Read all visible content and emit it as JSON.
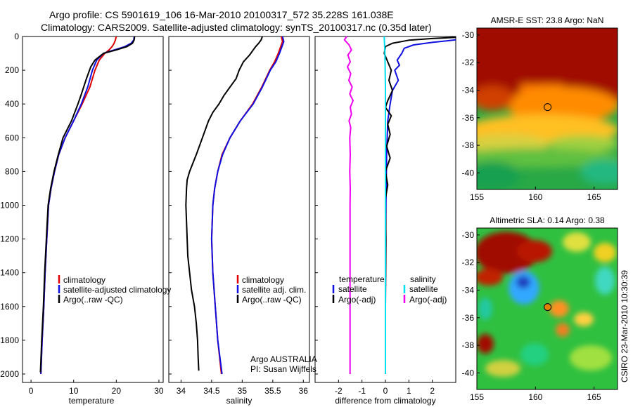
{
  "header": {
    "line1": "Argo profile: CS 5901619_106 16-Mar-2010 20100317_572 35.228S 161.038E",
    "line2": "Climatology: CARS2009. Satellite-adjusted climatology: synTS_20100317.nc (0.35d later)"
  },
  "colors": {
    "climatology": "#e00000",
    "satellite": "#1010e0",
    "argo": "#000000",
    "satellite_salinity": "#00e0f0",
    "argo_salinity_diff": "#f000f0"
  },
  "chart_data": [
    {
      "type": "line",
      "id": "temperature",
      "xlabel": "temperature",
      "ylabel": "",
      "xlim": [
        -2,
        31
      ],
      "ylim": [
        2050,
        0
      ],
      "x_ticks": [
        0,
        10,
        20,
        30
      ],
      "y_ticks": [
        0,
        200,
        400,
        600,
        800,
        1000,
        1200,
        1400,
        1600,
        1800,
        2000
      ],
      "series": [
        {
          "name": "climatology",
          "color": "#e00000",
          "points": [
            [
              20.0,
              0
            ],
            [
              19.8,
              20
            ],
            [
              19.5,
              40
            ],
            [
              19.0,
              60
            ],
            [
              18.3,
              80
            ],
            [
              17.3,
              100
            ],
            [
              16.0,
              140
            ],
            [
              15.0,
              200
            ],
            [
              13.8,
              300
            ],
            [
              12.0,
              400
            ],
            [
              10.0,
              500
            ],
            [
              8.0,
              600
            ],
            [
              6.5,
              700
            ],
            [
              5.5,
              800
            ],
            [
              4.7,
              900
            ],
            [
              4.1,
              1000
            ],
            [
              3.7,
              1200
            ],
            [
              3.3,
              1400
            ],
            [
              3.0,
              1600
            ],
            [
              2.6,
              1800
            ],
            [
              2.3,
              2000
            ]
          ]
        },
        {
          "name": "satellite-adjusted climatology",
          "color": "#1010e0",
          "points": [
            [
              24.2,
              0
            ],
            [
              24.1,
              20
            ],
            [
              23.5,
              40
            ],
            [
              22.0,
              60
            ],
            [
              19.5,
              80
            ],
            [
              17.0,
              100
            ],
            [
              15.4,
              140
            ],
            [
              14.4,
              200
            ],
            [
              13.3,
              300
            ],
            [
              11.8,
              400
            ],
            [
              10.0,
              500
            ],
            [
              8.0,
              600
            ],
            [
              6.5,
              700
            ],
            [
              5.5,
              800
            ],
            [
              4.7,
              900
            ],
            [
              4.1,
              1000
            ],
            [
              3.7,
              1200
            ],
            [
              3.3,
              1400
            ],
            [
              3.0,
              1600
            ],
            [
              2.6,
              1800
            ],
            [
              2.3,
              2000
            ]
          ]
        },
        {
          "name": "Argo(..raw -QC)",
          "color": "#000000",
          "points": [
            [
              24.3,
              0
            ],
            [
              24.2,
              20
            ],
            [
              23.8,
              40
            ],
            [
              22.5,
              60
            ],
            [
              20.0,
              80
            ],
            [
              17.0,
              100
            ],
            [
              15.0,
              140
            ],
            [
              14.0,
              180
            ],
            [
              13.0,
              250
            ],
            [
              11.7,
              350
            ],
            [
              11.0,
              400
            ],
            [
              9.5,
              500
            ],
            [
              7.5,
              600
            ],
            [
              6.4,
              700
            ],
            [
              5.4,
              800
            ],
            [
              4.6,
              900
            ],
            [
              4.0,
              1000
            ],
            [
              3.6,
              1200
            ],
            [
              3.2,
              1400
            ],
            [
              2.9,
              1600
            ],
            [
              2.5,
              1800
            ],
            [
              2.2,
              1990
            ]
          ]
        }
      ],
      "legend": [
        "climatology",
        "satellite-adjusted climatology",
        "Argo(..raw -QC)"
      ]
    },
    {
      "type": "line",
      "id": "salinity",
      "xlabel": "salinity",
      "ylabel": "",
      "xlim": [
        33.8,
        36.1
      ],
      "ylim": [
        2050,
        0
      ],
      "x_ticks": [
        34,
        34.5,
        35,
        35.5,
        36
      ],
      "series": [
        {
          "name": "climatology",
          "color": "#e00000",
          "points": [
            [
              35.64,
              0
            ],
            [
              35.66,
              30
            ],
            [
              35.63,
              60
            ],
            [
              35.59,
              100
            ],
            [
              35.53,
              150
            ],
            [
              35.45,
              200
            ],
            [
              35.32,
              300
            ],
            [
              35.17,
              400
            ],
            [
              34.97,
              500
            ],
            [
              34.8,
              600
            ],
            [
              34.67,
              700
            ],
            [
              34.6,
              800
            ],
            [
              34.55,
              900
            ],
            [
              34.52,
              1000
            ],
            [
              34.5,
              1200
            ],
            [
              34.52,
              1400
            ],
            [
              34.56,
              1600
            ],
            [
              34.6,
              1800
            ],
            [
              34.66,
              2000
            ]
          ]
        },
        {
          "name": "satellite adj. clim.",
          "color": "#1010e0",
          "points": [
            [
              35.66,
              0
            ],
            [
              35.68,
              30
            ],
            [
              35.65,
              60
            ],
            [
              35.61,
              100
            ],
            [
              35.55,
              150
            ],
            [
              35.46,
              200
            ],
            [
              35.33,
              300
            ],
            [
              35.18,
              400
            ],
            [
              34.97,
              500
            ],
            [
              34.8,
              600
            ],
            [
              34.68,
              700
            ],
            [
              34.6,
              800
            ],
            [
              34.55,
              900
            ],
            [
              34.52,
              1000
            ],
            [
              34.5,
              1200
            ],
            [
              34.52,
              1400
            ],
            [
              34.56,
              1600
            ],
            [
              34.6,
              1800
            ],
            [
              34.67,
              2000
            ]
          ]
        },
        {
          "name": "Argo(..raw -QC)",
          "color": "#000000",
          "points": [
            [
              35.33,
              0
            ],
            [
              35.31,
              20
            ],
            [
              35.27,
              40
            ],
            [
              35.22,
              60
            ],
            [
              35.18,
              80
            ],
            [
              35.12,
              110
            ],
            [
              35.02,
              150
            ],
            [
              34.95,
              200
            ],
            [
              34.9,
              250
            ],
            [
              34.8,
              300
            ],
            [
              34.7,
              350
            ],
            [
              34.62,
              400
            ],
            [
              34.52,
              450
            ],
            [
              34.45,
              500
            ],
            [
              34.35,
              600
            ],
            [
              34.25,
              700
            ],
            [
              34.14,
              800
            ],
            [
              34.1,
              850
            ],
            [
              34.09,
              900
            ],
            [
              34.08,
              1000
            ],
            [
              34.09,
              1100
            ],
            [
              34.1,
              1200
            ],
            [
              34.11,
              1300
            ],
            [
              34.14,
              1400
            ],
            [
              34.17,
              1500
            ],
            [
              34.22,
              1600
            ],
            [
              34.25,
              1700
            ],
            [
              34.27,
              1800
            ],
            [
              34.28,
              1900
            ],
            [
              34.29,
              1980
            ]
          ]
        }
      ],
      "legend": [
        "climatology",
        "satellite adj. clim.",
        "Argo(..raw -QC)"
      ],
      "annotation": [
        "Argo AUSTRALIA",
        "PI: Susan Wijffels"
      ]
    },
    {
      "type": "line",
      "id": "difference",
      "xlabel": "difference from climatology",
      "ylabel": "",
      "xlim": [
        -3,
        3
      ],
      "ylim": [
        2050,
        0
      ],
      "x_ticks": [
        -2,
        -1,
        0,
        1,
        2
      ],
      "series": [
        {
          "name": "temperature satellite",
          "color": "#1010e0",
          "points": [
            [
              3.0,
              20
            ],
            [
              2.0,
              35
            ],
            [
              1.2,
              50
            ],
            [
              0.8,
              70
            ],
            [
              0.7,
              100
            ],
            [
              0.5,
              140
            ],
            [
              0.6,
              170
            ],
            [
              0.4,
              200
            ],
            [
              0.55,
              260
            ],
            [
              0.3,
              320
            ],
            [
              0.2,
              400
            ],
            [
              0.1,
              500
            ],
            [
              0.05,
              700
            ],
            [
              0.02,
              1000
            ],
            [
              0.0,
              1500
            ],
            [
              0.0,
              2000
            ]
          ]
        },
        {
          "name": "temperature Argo(-adj)",
          "color": "#000000",
          "points": [
            [
              3.0,
              5
            ],
            [
              2.0,
              12
            ],
            [
              1.0,
              22
            ],
            [
              0.3,
              40
            ],
            [
              0.0,
              60
            ],
            [
              -0.05,
              100
            ],
            [
              0.1,
              150
            ],
            [
              0.25,
              200
            ],
            [
              0.15,
              260
            ],
            [
              0.3,
              320
            ],
            [
              0.1,
              380
            ],
            [
              0.0,
              420
            ],
            [
              0.25,
              470
            ],
            [
              0.1,
              520
            ],
            [
              0.2,
              580
            ],
            [
              0.05,
              650
            ],
            [
              0.2,
              720
            ],
            [
              0.0,
              800
            ],
            [
              0.1,
              880
            ],
            [
              0.0,
              960
            ],
            [
              0.02,
              1200
            ],
            [
              0.0,
              1600
            ],
            [
              0.0,
              2000
            ]
          ]
        },
        {
          "name": "salinity satellite",
          "color": "#00e0f0",
          "points": [
            [
              -0.05,
              0
            ],
            [
              -0.02,
              100
            ],
            [
              0.0,
              300
            ],
            [
              0.0,
              600
            ],
            [
              0.0,
              1000
            ],
            [
              0.0,
              1500
            ],
            [
              0.0,
              2000
            ]
          ]
        },
        {
          "name": "salinity Argo(-adj)",
          "color": "#f000f0",
          "points": [
            [
              -1.65,
              0
            ],
            [
              -1.75,
              20
            ],
            [
              -1.55,
              50
            ],
            [
              -1.45,
              80
            ],
            [
              -1.6,
              110
            ],
            [
              -1.5,
              150
            ],
            [
              -1.62,
              180
            ],
            [
              -1.48,
              220
            ],
            [
              -1.56,
              260
            ],
            [
              -1.42,
              300
            ],
            [
              -1.52,
              340
            ],
            [
              -1.38,
              380
            ],
            [
              -1.5,
              420
            ],
            [
              -1.45,
              460
            ],
            [
              -1.55,
              500
            ],
            [
              -1.48,
              540
            ],
            [
              -1.52,
              600
            ],
            [
              -1.5,
              700
            ],
            [
              -1.52,
              800
            ],
            [
              -1.5,
              900
            ],
            [
              -1.51,
              1000
            ],
            [
              -1.51,
              1200
            ],
            [
              -1.51,
              1400
            ],
            [
              -1.51,
              1600
            ],
            [
              -1.51,
              1800
            ],
            [
              -1.51,
              2000
            ]
          ]
        }
      ],
      "legend_headers": [
        "temperature",
        "salinity"
      ],
      "legend": [
        "satellite",
        "Argo(-adj)",
        "satellite",
        "Argo(-adj)"
      ]
    },
    {
      "type": "heatmap",
      "id": "sst_map",
      "title": "AMSR-E SST: 23.8 Argo: NaN",
      "xlim": [
        155,
        167
      ],
      "ylim": [
        -41.2,
        -29.5
      ],
      "x_ticks": [
        155,
        160,
        165
      ],
      "y_ticks": [
        -30,
        -32,
        -34,
        -36,
        -38,
        -40
      ],
      "marker": [
        161.038,
        -35.228
      ],
      "marker_fill": "none"
    },
    {
      "type": "heatmap",
      "id": "sla_map",
      "title": "Altimetric SLA: 0.14 Argo: 0.38",
      "xlim": [
        155,
        167
      ],
      "ylim": [
        -41.2,
        -29.5
      ],
      "x_ticks": [
        155,
        160,
        165
      ],
      "y_ticks": [
        -30,
        -32,
        -34,
        -36,
        -38,
        -40
      ],
      "marker": [
        161.038,
        -35.228
      ],
      "marker_fill": "#e08000"
    }
  ],
  "credit": "CSIRO 23-Mar-2010 10:30:39"
}
